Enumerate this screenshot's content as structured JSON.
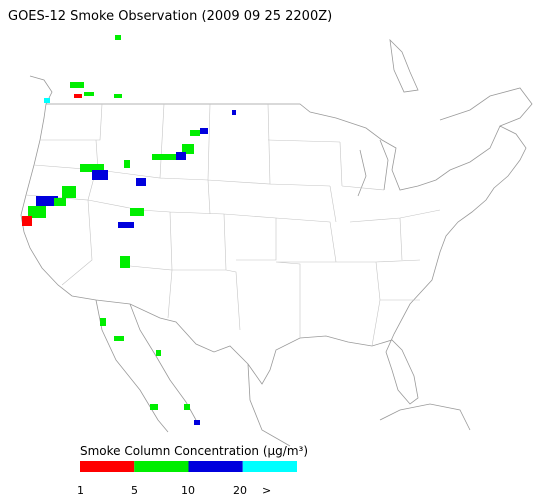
{
  "title": "GOES-12 Smoke Observation (2009 09 25  2200Z)",
  "legend": {
    "title": "Smoke Column Concentration (μg/m³)",
    "bins": [
      {
        "color": "#ff0000"
      },
      {
        "color": "#00ee00"
      },
      {
        "color": "#0000dd"
      },
      {
        "color": "#00ffff"
      }
    ],
    "labels": [
      "1",
      "5",
      "10",
      "20",
      ">"
    ]
  }
}
